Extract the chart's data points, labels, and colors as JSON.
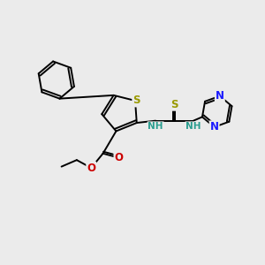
{
  "background_color": "#ebebeb",
  "fig_size": [
    3.0,
    3.0
  ],
  "dpi": 100,
  "atom_colors": {
    "C": "#000000",
    "N": "#1a1aff",
    "O": "#cc0000",
    "S_thio": "#999900",
    "S_ring": "#999900",
    "NH": "#2a9d8f",
    "H": "#000000"
  },
  "bond_color": "#000000",
  "bond_width": 1.4,
  "font_size_atoms": 8.5,
  "font_size_nh": 7.5
}
